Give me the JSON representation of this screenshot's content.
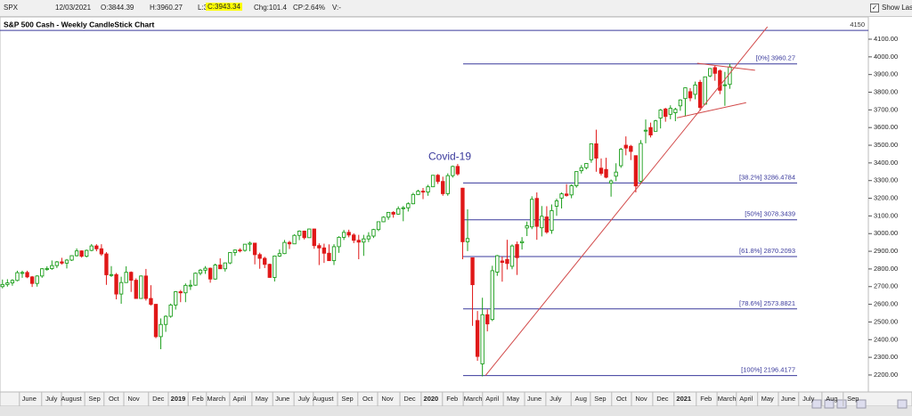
{
  "toolbar": {
    "symbol": "SPX",
    "date": "12/03/2021",
    "open": "O:3844.39",
    "high": "H:3960.27",
    "low": "L:3819.25",
    "close": "C:3943.34",
    "change": "Chg:101.4",
    "change_pct": "CP:2.64%",
    "volume": "V:-",
    "show_last": "Show Last"
  },
  "chart_data": {
    "type": "candlestick",
    "title": "S&P 500 Cash - Weekly CandleStick Chart",
    "up_color": "#1c9e1c",
    "down_color": "#e01818",
    "level_color": "#3a3a9c",
    "trend_color": "#d24a4a",
    "xlim": [
      -0.5,
      175
    ],
    "ylim": [
      2104,
      4226
    ],
    "yticks": [
      {
        "value": 2200,
        "label": "2200.00"
      },
      {
        "value": 2300,
        "label": "2300.00"
      },
      {
        "value": 2400,
        "label": "2400.00"
      },
      {
        "value": 2500,
        "label": "2500.00"
      },
      {
        "value": 2600,
        "label": "2600.00"
      },
      {
        "value": 2700,
        "label": "2700.00"
      },
      {
        "value": 2800,
        "label": "2800.00"
      },
      {
        "value": 2900,
        "label": "2900.00"
      },
      {
        "value": 3000,
        "label": "3000.00"
      },
      {
        "value": 3100,
        "label": "3100.00"
      },
      {
        "value": 3200,
        "label": "3200.00"
      },
      {
        "value": 3300,
        "label": "3300.00"
      },
      {
        "value": 3400,
        "label": "3400.00"
      },
      {
        "value": 3500,
        "label": "3500.00"
      },
      {
        "value": 3600,
        "label": "3600.00"
      },
      {
        "value": 3700,
        "label": "3700.00"
      },
      {
        "value": 3800,
        "label": "3800.00"
      },
      {
        "value": 3900,
        "label": "3900.00"
      },
      {
        "value": 4000,
        "label": "4000.00"
      },
      {
        "value": 4100,
        "label": "4100.00"
      }
    ],
    "xticks": [
      {
        "value": 5.4,
        "label": "June"
      },
      {
        "value": 9.9,
        "label": "July"
      },
      {
        "value": 13.9,
        "label": "August"
      },
      {
        "value": 18.6,
        "label": "Sep"
      },
      {
        "value": 22.5,
        "label": "Oct"
      },
      {
        "value": 26.5,
        "label": "Nov"
      },
      {
        "value": 31.5,
        "label": "Dec"
      },
      {
        "value": 35.5,
        "label": "2019"
      },
      {
        "value": 39.5,
        "label": "Feb"
      },
      {
        "value": 43.2,
        "label": "March"
      },
      {
        "value": 47.9,
        "label": "April"
      },
      {
        "value": 52.4,
        "label": "May"
      },
      {
        "value": 56.6,
        "label": "June"
      },
      {
        "value": 60.9,
        "label": "July"
      },
      {
        "value": 64.8,
        "label": "August"
      },
      {
        "value": 69.7,
        "label": "Sep"
      },
      {
        "value": 73.8,
        "label": "Oct"
      },
      {
        "value": 77.8,
        "label": "Nov"
      },
      {
        "value": 82.3,
        "label": "Dec"
      },
      {
        "value": 86.6,
        "label": "2020"
      },
      {
        "value": 90.9,
        "label": "Feb"
      },
      {
        "value": 95.1,
        "label": "March"
      },
      {
        "value": 99,
        "label": "April"
      },
      {
        "value": 103.2,
        "label": "May"
      },
      {
        "value": 107.5,
        "label": "June"
      },
      {
        "value": 111.8,
        "label": "July"
      },
      {
        "value": 116.9,
        "label": "Aug"
      },
      {
        "value": 120.8,
        "label": "Sep"
      },
      {
        "value": 125.1,
        "label": "Oct"
      },
      {
        "value": 129.1,
        "label": "Nov"
      },
      {
        "value": 133.4,
        "label": "Dec"
      },
      {
        "value": 137.7,
        "label": "2021"
      },
      {
        "value": 142.2,
        "label": "Feb"
      },
      {
        "value": 146.4,
        "label": "March"
      },
      {
        "value": 150.3,
        "label": "April"
      },
      {
        "value": 154.6,
        "label": "May"
      },
      {
        "value": 158.8,
        "label": "June"
      },
      {
        "value": 162.9,
        "label": "July"
      },
      {
        "value": 167.6,
        "label": "Aug"
      },
      {
        "value": 171.9,
        "label": "Sep"
      }
    ],
    "x": [
      0,
      1,
      2,
      3,
      4,
      5,
      6,
      7,
      8,
      9,
      10,
      11,
      12,
      13,
      14,
      15,
      16,
      17,
      18,
      19,
      20,
      21,
      22,
      23,
      24,
      25,
      26,
      27,
      28,
      29,
      30,
      31,
      32,
      33,
      34,
      35,
      36,
      37,
      38,
      39,
      40,
      41,
      42,
      43,
      44,
      45,
      46,
      47,
      48,
      49,
      50,
      51,
      52,
      53,
      54,
      55,
      56,
      57,
      58,
      59,
      60,
      61,
      62,
      63,
      64,
      65,
      66,
      67,
      68,
      69,
      70,
      71,
      72,
      73,
      74,
      75,
      76,
      77,
      78,
      79,
      80,
      81,
      82,
      83,
      84,
      85,
      86,
      87,
      88,
      89,
      90,
      91,
      92,
      93,
      94,
      95,
      96,
      97,
      98,
      99,
      100,
      101,
      102,
      103,
      104,
      105,
      106,
      107,
      108,
      109,
      110,
      111,
      112,
      113,
      114,
      115,
      116,
      117,
      118,
      119,
      120,
      121,
      122,
      123,
      124,
      125,
      126,
      127,
      128,
      129,
      130,
      131,
      132,
      133,
      134,
      135,
      136,
      137,
      138,
      139,
      140,
      141,
      142,
      143,
      144,
      145,
      146,
      147
    ],
    "open": [
      2700,
      2712,
      2721,
      2735,
      2779,
      2780,
      2755,
      2718,
      2760,
      2801,
      2802,
      2819,
      2840,
      2833,
      2850,
      2875,
      2902,
      2872,
      2905,
      2930,
      2914,
      2885,
      2767,
      2768,
      2658,
      2723,
      2781,
      2736,
      2633,
      2760,
      2633,
      2600,
      2417,
      2486,
      2532,
      2596,
      2671,
      2665,
      2707,
      2708,
      2776,
      2793,
      2804,
      2743,
      2822,
      2801,
      2834,
      2893,
      2907,
      2905,
      2940,
      2946,
      2881,
      2860,
      2826,
      2752,
      2873,
      2887,
      2950,
      2942,
      2990,
      3014,
      2977,
      3026,
      2932,
      2919,
      2889,
      2847,
      2926,
      2979,
      3007,
      2992,
      2962,
      2952,
      2970,
      2986,
      3023,
      3067,
      3093,
      3120,
      3110,
      3141,
      3146,
      3169,
      3221,
      3240,
      3235,
      3265,
      3330,
      3295,
      3226,
      3328,
      3380,
      3257,
      2954,
      2863,
      2508,
      2263,
      2541,
      2514,
      2782,
      2845,
      2854,
      2815,
      2938,
      2948,
      3032,
      3038,
      3199,
      3033,
      3094,
      3018,
      3155,
      3201,
      3224,
      3219,
      3271,
      3356,
      3373,
      3418,
      3508,
      3370,
      3363,
      3285,
      3325,
      3384,
      3500,
      3494,
      3441,
      3296,
      3583,
      3600,
      3579,
      3654,
      3705,
      3675,
      3684,
      3723,
      3764,
      3803,
      3788,
      3856,
      3732,
      3892,
      3939,
      3921,
      3842,
      3844.39
    ],
    "high": [
      2740,
      2742,
      2742,
      2790,
      2790,
      2790,
      2760,
      2765,
      2805,
      2815,
      2848,
      2845,
      2863,
      2856,
      2877,
      2916,
      2905,
      2910,
      2941,
      2940,
      2940,
      2895,
      2816,
      2777,
      2756,
      2815,
      2786,
      2747,
      2763,
      2800,
      2708,
      2601,
      2520,
      2538,
      2604,
      2675,
      2681,
      2718,
      2738,
      2780,
      2800,
      2816,
      2808,
      2830,
      2860,
      2836,
      2894,
      2910,
      2917,
      2940,
      2955,
      2948,
      2892,
      2869,
      2830,
      2876,
      2911,
      2964,
      2959,
      2996,
      3018,
      3017,
      3028,
      3028,
      2945,
      2943,
      2939,
      2940,
      2985,
      3021,
      3022,
      3002,
      2993,
      2993,
      3008,
      3027,
      3067,
      3098,
      3121,
      3127,
      3154,
      3156,
      3177,
      3231,
      3248,
      3258,
      3276,
      3330,
      3337,
      3322,
      3341,
      3385,
      3394,
      3259,
      3137,
      2863,
      2562,
      2637,
      2571,
      2818,
      2879,
      2870,
      2965,
      2939,
      2955,
      2980,
      3068,
      3211,
      3233,
      3156,
      3155,
      3165,
      3198,
      3233,
      3280,
      3279,
      3352,
      3388,
      3399,
      3509,
      3588,
      3425,
      3429,
      3306,
      3398,
      3485,
      3550,
      3502,
      3441,
      3529,
      3646,
      3628,
      3644,
      3705,
      3712,
      3726,
      3712,
      3760,
      3826,
      3823,
      3860,
      3870,
      3887,
      3937,
      3950,
      3929,
      3915,
      3960.27
    ],
    "low": [
      2690,
      2700,
      2705,
      2730,
      2750,
      2748,
      2698,
      2700,
      2750,
      2790,
      2795,
      2805,
      2825,
      2803,
      2845,
      2870,
      2864,
      2865,
      2900,
      2900,
      2874,
      2710,
      2755,
      2628,
      2603,
      2722,
      2670,
      2631,
      2631,
      2621,
      2593,
      2408,
      2346,
      2444,
      2524,
      2570,
      2612,
      2612,
      2681,
      2705,
      2764,
      2772,
      2722,
      2739,
      2800,
      2785,
      2827,
      2874,
      2894,
      2898,
      2900,
      2826,
      2801,
      2805,
      2750,
      2729,
      2868,
      2884,
      2913,
      2942,
      2963,
      2967,
      2977,
      2914,
      2822,
      2834,
      2847,
      2822,
      2891,
      2964,
      2979,
      2946,
      2855,
      2874,
      2952,
      2975,
      3014,
      3065,
      3078,
      3090,
      3107,
      3070,
      3125,
      3166,
      3219,
      3195,
      3214,
      3263,
      3281,
      3214,
      3214,
      3317,
      3328,
      2855,
      2901,
      2478,
      2280,
      2192,
      2447,
      2505,
      2761,
      2728,
      2797,
      2798,
      2766,
      2910,
      2986,
      3025,
      2965,
      2984,
      2999,
      2999,
      3101,
      3142,
      3209,
      3200,
      3260,
      3340,
      3363,
      3401,
      3350,
      3329,
      3313,
      3209,
      3297,
      3372,
      3443,
      3416,
      3233,
      3280,
      3511,
      3544,
      3579,
      3595,
      3633,
      3647,
      3636,
      3695,
      3663,
      3749,
      3760,
      3694,
      3730,
      3885,
      3865,
      3789,
      3723,
      3819.25
    ],
    "close": [
      2712,
      2721,
      2735,
      2779,
      2780,
      2755,
      2718,
      2760,
      2801,
      2802,
      2819,
      2840,
      2833,
      2850,
      2875,
      2902,
      2872,
      2905,
      2930,
      2914,
      2885,
      2767,
      2768,
      2658,
      2723,
      2781,
      2736,
      2633,
      2760,
      2633,
      2600,
      2417,
      2486,
      2532,
      2596,
      2671,
      2665,
      2707,
      2708,
      2776,
      2793,
      2804,
      2743,
      2822,
      2801,
      2834,
      2893,
      2907,
      2905,
      2940,
      2946,
      2881,
      2860,
      2826,
      2752,
      2873,
      2887,
      2950,
      2942,
      2990,
      3014,
      2977,
      3026,
      2932,
      2919,
      2889,
      2847,
      2926,
      2979,
      3007,
      2992,
      2962,
      2952,
      2970,
      2986,
      3023,
      3067,
      3093,
      3120,
      3110,
      3141,
      3146,
      3169,
      3221,
      3240,
      3235,
      3265,
      3330,
      3295,
      3226,
      3328,
      3380,
      3338,
      2954,
      2972,
      2711,
      2305,
      2541,
      2489,
      2790,
      2875,
      2837,
      2831,
      2930,
      2864,
      2955,
      3044,
      3194,
      3041,
      3098,
      3009,
      3130,
      3185,
      3225,
      3216,
      3271,
      3351,
      3373,
      3397,
      3508,
      3427,
      3341,
      3319,
      3298,
      3348,
      3477,
      3484,
      3465,
      3270,
      3510,
      3585,
      3558,
      3638,
      3699,
      3663,
      3709,
      3703,
      3756,
      3825,
      3768,
      3841,
      3714,
      3887,
      3934,
      3907,
      3811,
      3842,
      3943.34
    ],
    "hline": {
      "value": 4150,
      "label": "4150"
    },
    "levels_x": [
      93.1,
      160.6
    ],
    "levels": [
      {
        "value": 3960.27,
        "label": "[0%] 3960.27"
      },
      {
        "value": 3286.4784,
        "label": "[38.2%] 3286.4784"
      },
      {
        "value": 3078.3439,
        "label": "[50%] 3078.3439"
      },
      {
        "value": 2870.2093,
        "label": "[61.8%] 2870.2093"
      },
      {
        "value": 2573.8821,
        "label": "[78.6%] 2573.8821"
      },
      {
        "value": 2196.4177,
        "label": "[100%] 2196.4177"
      }
    ],
    "trendlines": [
      {
        "x": [
          97.6,
          154.6
        ],
        "y": [
          2196,
          4170
        ]
      },
      {
        "x": [
          140.4,
          152.1
        ],
        "y": [
          3964,
          3924
        ]
      },
      {
        "x": [
          136.3,
          150.3
        ],
        "y": [
          3655,
          3741
        ]
      }
    ],
    "annotation": {
      "text": "Covid-19",
      "x": 90.4,
      "y": 3433
    }
  }
}
